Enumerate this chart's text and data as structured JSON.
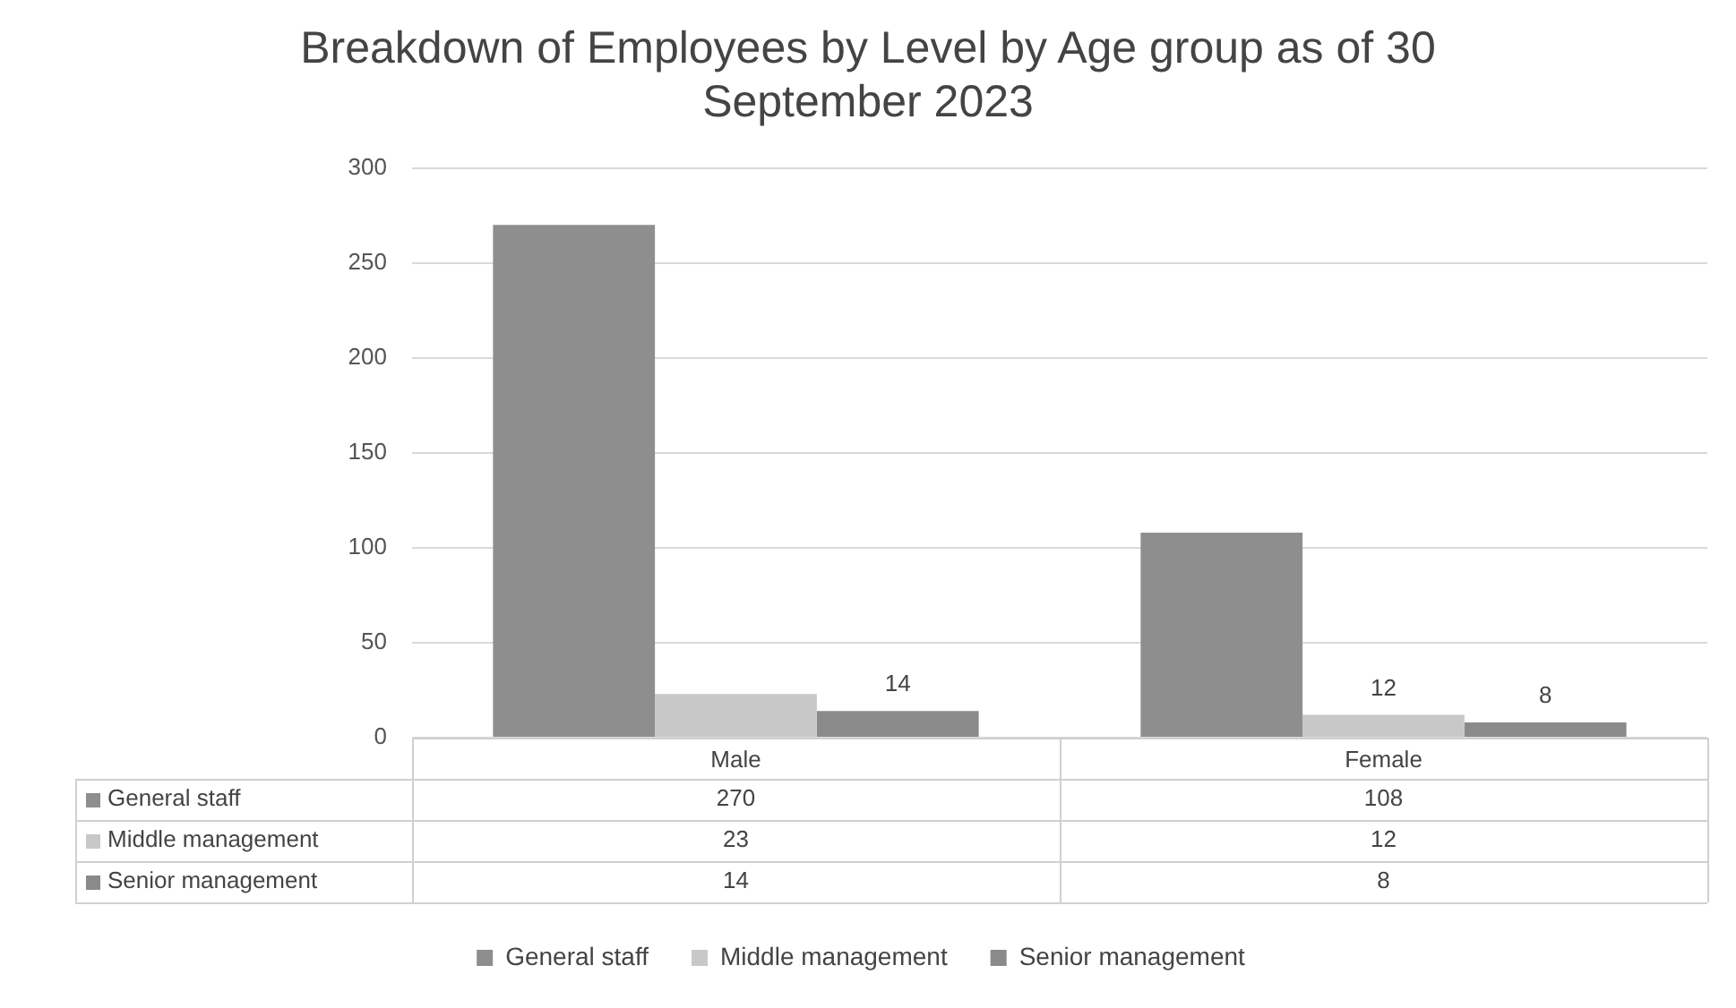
{
  "chart_data": {
    "type": "bar",
    "title": "Breakdown of Employees by Level by Age group as of 30 September 2023",
    "categories": [
      "Male",
      "Female"
    ],
    "series": [
      {
        "name": "General staff",
        "color": "#8e8e8e",
        "values": [
          270,
          108
        ]
      },
      {
        "name": "Middle management",
        "color": "#c8c8c8",
        "values": [
          23,
          12
        ]
      },
      {
        "name": "Senior management",
        "color": "#8a8a8a",
        "values": [
          14,
          8
        ]
      }
    ],
    "annotations": [
      "14",
      "12",
      "8"
    ],
    "ylim": [
      0,
      300
    ],
    "yticks": [
      0,
      50,
      100,
      150,
      200,
      250,
      300
    ],
    "grid": "y",
    "legend": "bottom",
    "data_labels": true
  }
}
